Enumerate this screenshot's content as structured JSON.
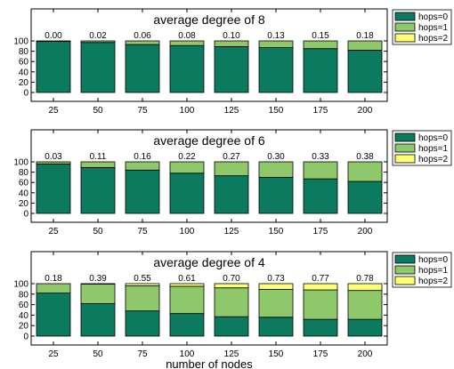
{
  "chart_data": [
    {
      "type": "bar",
      "stacked": true,
      "title": "average degree of 8",
      "categories": [
        "25",
        "50",
        "75",
        "100",
        "125",
        "150",
        "175",
        "200"
      ],
      "series": [
        {
          "name": "hops=0",
          "color": "#0b7a5e",
          "values": [
            99,
            97,
            93,
            91,
            89,
            87,
            85,
            82
          ]
        },
        {
          "name": "hops=1",
          "color": "#8fc86a",
          "values": [
            1,
            3,
            7,
            9,
            11,
            13,
            15,
            18
          ]
        },
        {
          "name": "hops=2",
          "color": "#ffff77",
          "values": [
            0,
            0,
            0,
            0,
            0,
            0,
            0,
            0
          ]
        }
      ],
      "data_labels": [
        "0.00",
        "0.02",
        "0.06",
        "0.08",
        "0.10",
        "0.13",
        "0.15",
        "0.18"
      ],
      "yticks": [
        "0",
        "20",
        "40",
        "60",
        "80",
        "100"
      ],
      "ylim": [
        0,
        100
      ],
      "xlabel": "",
      "ylabel": "",
      "legend": "outside-right"
    },
    {
      "type": "bar",
      "stacked": true,
      "title": "average degree of 6",
      "categories": [
        "25",
        "50",
        "75",
        "100",
        "125",
        "150",
        "175",
        "200"
      ],
      "series": [
        {
          "name": "hops=0",
          "color": "#0b7a5e",
          "values": [
            96,
            89,
            84,
            78,
            73,
            70,
            67,
            62
          ]
        },
        {
          "name": "hops=1",
          "color": "#8fc86a",
          "values": [
            4,
            11,
            16,
            22,
            27,
            30,
            33,
            38
          ]
        },
        {
          "name": "hops=2",
          "color": "#ffff77",
          "values": [
            0,
            0,
            0,
            0,
            0,
            0,
            0,
            0
          ]
        }
      ],
      "data_labels": [
        "0.03",
        "0.11",
        "0.16",
        "0.22",
        "0.27",
        "0.30",
        "0.33",
        "0.38"
      ],
      "yticks": [
        "0",
        "20",
        "40",
        "60",
        "80",
        "100"
      ],
      "ylim": [
        0,
        100
      ],
      "xlabel": "",
      "ylabel": "",
      "legend": "outside-right"
    },
    {
      "type": "bar",
      "stacked": true,
      "title": "average degree of 4",
      "categories": [
        "25",
        "50",
        "75",
        "100",
        "125",
        "150",
        "175",
        "200"
      ],
      "series": [
        {
          "name": "hops=0",
          "color": "#0b7a5e",
          "values": [
            82,
            62,
            48,
            43,
            37,
            36,
            32,
            32
          ]
        },
        {
          "name": "hops=1",
          "color": "#8fc86a",
          "values": [
            18,
            37,
            48,
            52,
            55,
            53,
            56,
            55
          ]
        },
        {
          "name": "hops=2",
          "color": "#ffff77",
          "values": [
            0,
            1,
            4,
            5,
            8,
            11,
            12,
            13
          ]
        }
      ],
      "data_labels": [
        "0.18",
        "0.39",
        "0.55",
        "0.61",
        "0.70",
        "0.73",
        "0.77",
        "0.78"
      ],
      "yticks": [
        "0",
        "20",
        "40",
        "60",
        "80",
        "100"
      ],
      "ylim": [
        0,
        100
      ],
      "xlabel": "number of nodes",
      "ylabel": "",
      "legend": "outside-right"
    }
  ]
}
